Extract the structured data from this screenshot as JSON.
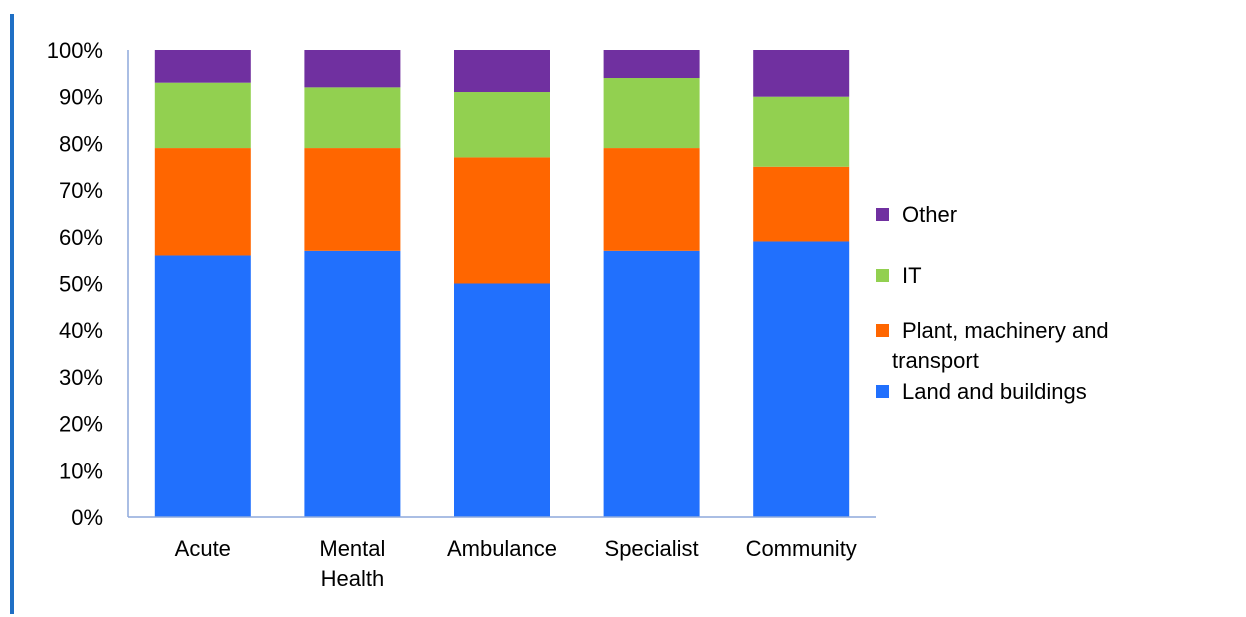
{
  "chart_data": {
    "type": "bar",
    "stacked": true,
    "categories": [
      "Acute",
      "Mental Health",
      "Ambulance",
      "Specialist",
      "Community"
    ],
    "category_lines": [
      [
        "Acute"
      ],
      [
        "Mental",
        "Health"
      ],
      [
        "Ambulance"
      ],
      [
        "Specialist"
      ],
      [
        "Community"
      ]
    ],
    "series": [
      {
        "name": "Land and buildings",
        "color": "#2170fd",
        "values": [
          56,
          57,
          50,
          57,
          59
        ]
      },
      {
        "name": "Plant, machinery and transport",
        "color": "#ff6600",
        "values": [
          23,
          22,
          27,
          22,
          16
        ]
      },
      {
        "name": "IT",
        "color": "#92d050",
        "values": [
          14,
          13,
          14,
          15,
          15
        ]
      },
      {
        "name": "Other",
        "color": "#7030a0",
        "values": [
          7,
          8,
          9,
          6,
          10
        ]
      }
    ],
    "legend_order": [
      "Other",
      "IT",
      "Plant, machinery and transport",
      "Land and buildings"
    ],
    "legend_lines": {
      "Other": [
        "Other"
      ],
      "IT": [
        "IT"
      ],
      "Plant, machinery and transport": [
        "Plant, machinery and",
        "transport"
      ],
      "Land and buildings": [
        "Land and buildings"
      ]
    },
    "yticks": [
      "0%",
      "10%",
      "20%",
      "30%",
      "40%",
      "50%",
      "60%",
      "70%",
      "80%",
      "90%",
      "100%"
    ],
    "ylim": [
      0,
      100
    ],
    "grid": false,
    "legend_position": "right",
    "axis_color": "#8ea9db",
    "accent_color": "#1f6fc5"
  }
}
